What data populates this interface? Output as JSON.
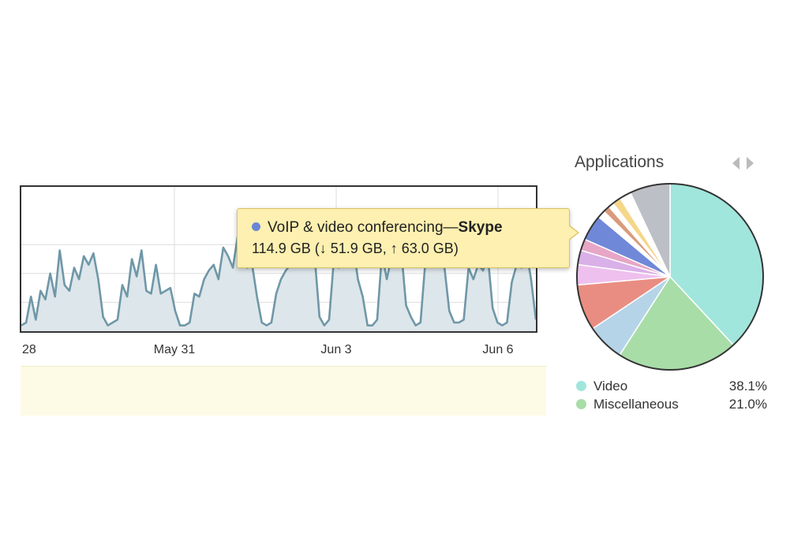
{
  "chart_data": [
    {
      "type": "area",
      "title": "",
      "xlabel": "",
      "ylabel": "",
      "x_tick_labels": [
        "28",
        "May 31",
        "Jun 3",
        "Jun 6"
      ],
      "ylim": [
        0,
        5
      ],
      "grid": true,
      "series": [
        {
          "values": [
            0.2,
            0.3,
            1.2,
            0.4,
            1.4,
            1.1,
            2.0,
            1.2,
            2.8,
            1.6,
            1.4,
            2.2,
            1.8,
            2.6,
            2.3,
            2.7,
            1.8,
            0.5,
            0.2,
            0.3,
            0.4,
            1.6,
            1.2,
            2.5,
            1.9,
            2.8,
            1.4,
            1.3,
            2.3,
            1.3,
            1.4,
            1.5,
            0.7,
            0.2,
            0.2,
            0.3,
            1.3,
            1.2,
            1.8,
            2.1,
            2.3,
            1.8,
            2.9,
            2.6,
            2.2,
            3.3,
            2.4,
            2.2,
            2.3,
            1.2,
            0.3,
            0.2,
            0.3,
            1.3,
            1.8,
            2.1,
            2.3,
            3.5,
            3.0,
            2.8,
            3.0,
            2.6,
            0.5,
            0.2,
            0.4,
            2.5,
            2.2,
            2.8,
            2.6,
            3.0,
            1.8,
            1.2,
            0.2,
            0.2,
            0.4,
            2.7,
            1.8,
            2.6,
            2.3,
            2.8,
            0.9,
            0.5,
            0.2,
            0.3,
            2.4,
            2.9,
            2.3,
            2.7,
            2.2,
            0.7,
            0.3,
            0.3,
            0.4,
            2.2,
            1.8,
            2.3,
            2.1,
            2.6,
            0.8,
            0.3,
            0.2,
            0.3,
            1.7,
            2.3,
            2.2,
            2.8,
            1.8,
            0.4
          ]
        }
      ]
    },
    {
      "type": "pie",
      "title": "Applications",
      "series": [
        {
          "values": [
            38.1,
            21.0,
            6.5,
            8.0,
            3.5,
            2.5,
            2.0,
            4.5,
            1.3,
            1.2,
            0.9,
            1.5,
            2.0,
            7.0
          ],
          "colors": [
            "#a0e6dc",
            "#a8dda8",
            "#b6d4e8",
            "#e98d82",
            "#eec0ee",
            "#dab0e8",
            "#e7a6c6",
            "#7088d8",
            "#ffffff",
            "#d99c7c",
            "#ffffff",
            "#f5d789",
            "#ffffff",
            "#bdbfc6"
          ]
        }
      ],
      "legend_position": "bottom"
    }
  ],
  "tooltip": {
    "category": "VoIP & video conferencing—",
    "app": "Skype",
    "total": "114.9 GB",
    "detail": "(↓ 51.9 GB, ↑ 63.0 GB)",
    "dot_color": "#6b86d6"
  },
  "applications": {
    "title": "Applications",
    "nav_icons": [
      "chevron-left-icon",
      "chevron-right-icon"
    ],
    "legend": [
      {
        "name": "Video",
        "percent": "38.1%",
        "color": "#a0e6dc"
      },
      {
        "name": "Miscellaneous",
        "percent": "21.0%",
        "color": "#a8dda8"
      }
    ]
  }
}
